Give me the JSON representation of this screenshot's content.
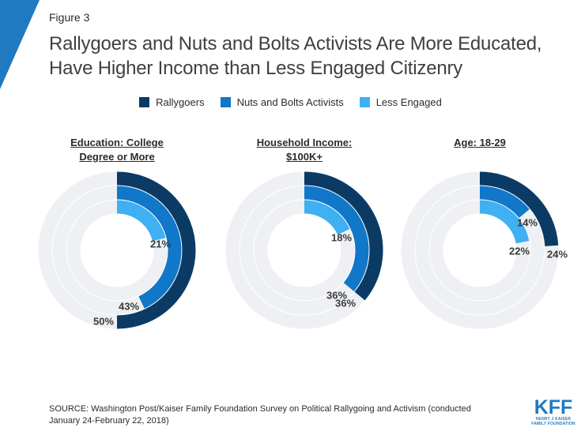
{
  "figure_label": "Figure 3",
  "title": "Rallygoers and Nuts and Bolts Activists Are More Educated, Have Higher Income than Less Engaged Citizenry",
  "colors": {
    "accent": "#1f7ac2",
    "track": "#eef0f3",
    "series": [
      "#0b3b64",
      "#1177c9",
      "#3fb0f2"
    ]
  },
  "legend": [
    {
      "label": "Rallygoers",
      "color": "#0b3b64"
    },
    {
      "label": "Nuts and Bolts Activists",
      "color": "#1177c9"
    },
    {
      "label": "Less Engaged",
      "color": "#3fb0f2"
    }
  ],
  "chart_data": [
    {
      "type": "radial-bar",
      "title_line1": "Education: College",
      "title_line2": "Degree or More",
      "series": [
        {
          "name": "Rallygoers",
          "value": 50,
          "label": "50%"
        },
        {
          "name": "Nuts and Bolts Activists",
          "value": 43,
          "label": "43%"
        },
        {
          "name": "Less Engaged",
          "value": 21,
          "label": "21%"
        }
      ]
    },
    {
      "type": "radial-bar",
      "title_line1": "Household Income:",
      "title_line2": "$100K+",
      "series": [
        {
          "name": "Rallygoers",
          "value": 36,
          "label": "36%"
        },
        {
          "name": "Nuts and Bolts Activists",
          "value": 36,
          "label": "36%"
        },
        {
          "name": "Less Engaged",
          "value": 18,
          "label": "18%"
        }
      ]
    },
    {
      "type": "radial-bar",
      "title_line1": "Age: 18-29",
      "title_line2": "",
      "series": [
        {
          "name": "Rallygoers",
          "value": 24,
          "label": "24%"
        },
        {
          "name": "Nuts and Bolts Activists",
          "value": 14,
          "label": "14%"
        },
        {
          "name": "Less Engaged",
          "value": 22,
          "label": "22%"
        }
      ]
    }
  ],
  "source": "SOURCE: Washington Post/Kaiser Family Foundation Survey on Political Rallygoing and Activism (conducted January 24-February 22, 2018)",
  "logo": {
    "main": "KFF",
    "sub1": "HENRY J KAISER",
    "sub2": "FAMILY FOUNDATION"
  }
}
